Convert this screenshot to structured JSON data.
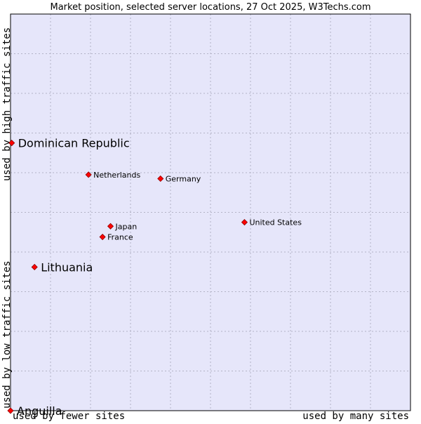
{
  "chart_data": {
    "type": "scatter",
    "title": "Market position, selected server locations, 27 Oct 2025, W3Techs.com",
    "xlabel_low": "used by fewer sites",
    "xlabel_high": "used by many sites",
    "ylabel_low": "used by low traffic sites",
    "ylabel_high": "used by high traffic sites",
    "xlim": [
      0,
      100
    ],
    "ylim": [
      0,
      100
    ],
    "grid": true,
    "colors": {
      "plot_bg": "#e6e6fa",
      "grid": "#b3b3c6",
      "frame": "#000000",
      "marker": "#ff0000",
      "marker_edge": "#8b0000",
      "text": "#000000"
    },
    "points": [
      {
        "label": "Dominican Republic",
        "x": 0.3,
        "y": 67.5,
        "emphasis": true
      },
      {
        "label": "Netherlands",
        "x": 19.5,
        "y": 59.5,
        "emphasis": false
      },
      {
        "label": "Germany",
        "x": 37.5,
        "y": 58.5,
        "emphasis": false
      },
      {
        "label": "United States",
        "x": 58.5,
        "y": 47.5,
        "emphasis": false
      },
      {
        "label": "Japan",
        "x": 25.0,
        "y": 46.5,
        "emphasis": false
      },
      {
        "label": "France",
        "x": 23.0,
        "y": 43.8,
        "emphasis": false
      },
      {
        "label": "Lithuania",
        "x": 6.0,
        "y": 36.2,
        "emphasis": true
      },
      {
        "label": "Anguilla",
        "x": 0.0,
        "y": 0.0,
        "emphasis": true
      }
    ]
  }
}
